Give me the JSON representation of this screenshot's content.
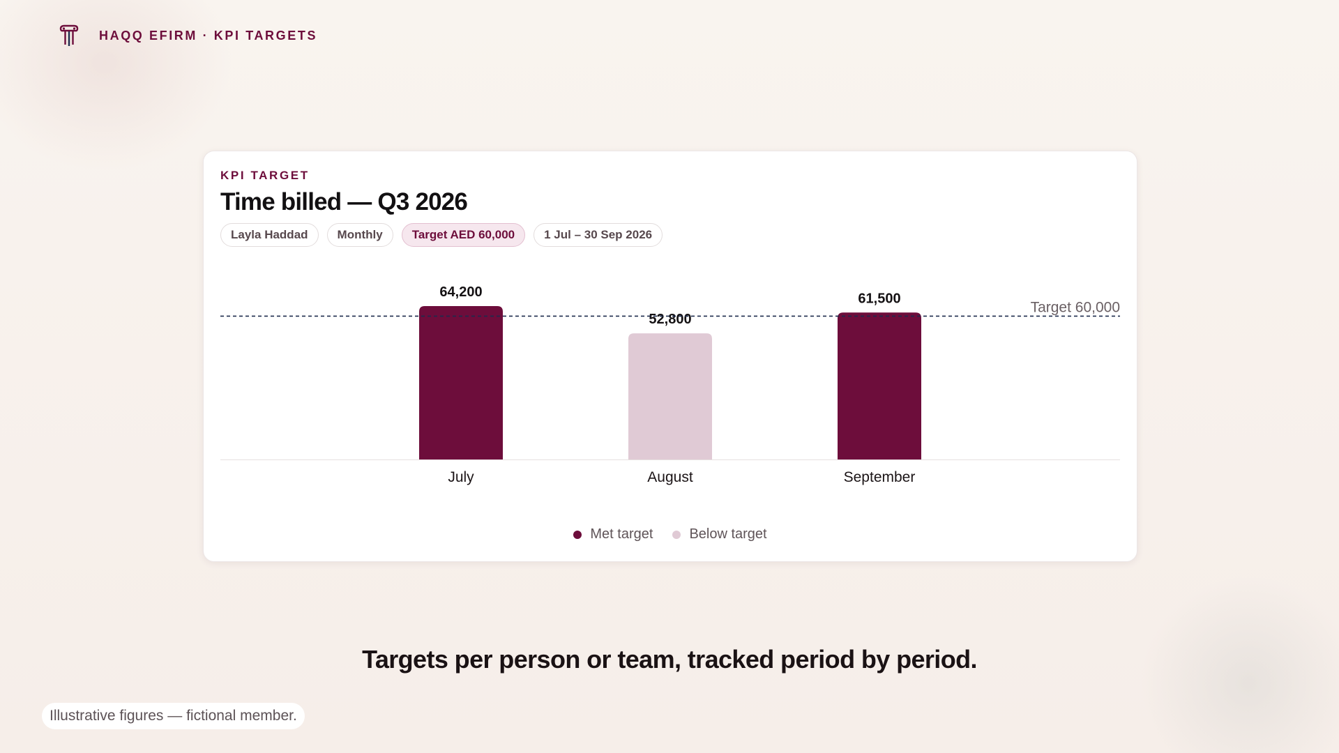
{
  "header": {
    "brand": "HAQQ EFIRM · KPI TARGETS",
    "icon": "column-pillar-icon"
  },
  "card": {
    "eyebrow": "KPI TARGET",
    "title": "Time billed — Q3 2026",
    "filters": {
      "person": "Layla Haddad",
      "period": "Monthly",
      "target": "Target AED 60,000",
      "range": "1 Jul – 30 Sep 2026"
    }
  },
  "chart_data": {
    "type": "bar",
    "categories": [
      "July",
      "August",
      "September"
    ],
    "values": [
      64200,
      52800,
      61500
    ],
    "value_labels": [
      "64,200",
      "52,800",
      "61,500"
    ],
    "status": [
      "met",
      "below",
      "met"
    ],
    "target": 60000,
    "target_label": "Target 60,000",
    "ylim": [
      0,
      64200
    ],
    "legend": [
      "Met target",
      "Below target"
    ],
    "legend_position": "bottom-center",
    "grid": false,
    "colors": {
      "met": "#6d0d3b",
      "below": "#e0cad5",
      "target_line": "#1d2b4c"
    }
  },
  "tagline": "Targets per person or team, tracked period by period.",
  "footnote": "Illustrative figures — fictional member."
}
